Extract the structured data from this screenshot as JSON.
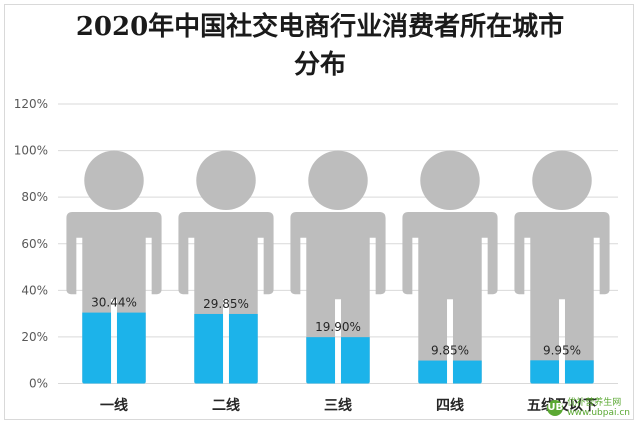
{
  "chart_data": {
    "type": "bar",
    "title_line1": "2020年中国社交电商行业消费者所在城市",
    "title_line2": "分布",
    "categories": [
      "一线",
      "二线",
      "三线",
      "四线",
      "五线及以下"
    ],
    "values": [
      30.44,
      29.85,
      19.9,
      9.85,
      9.95
    ],
    "value_labels": [
      "30.44%",
      "29.85%",
      "19.90%",
      "9.85%",
      "9.95%"
    ],
    "yticks": [
      "0%",
      "20%",
      "40%",
      "60%",
      "80%",
      "100%",
      "120%"
    ],
    "ylim": [
      0,
      120
    ],
    "grid": true,
    "colors": {
      "fill": "#1cb3ea",
      "figure": "#bdbdbd",
      "grid": "#d9d9d9"
    },
    "icon": "person-silhouette"
  },
  "watermark": {
    "text_top": "优补营养生网",
    "text_bottom": "www.ubpai.cn",
    "logo": "UB"
  }
}
